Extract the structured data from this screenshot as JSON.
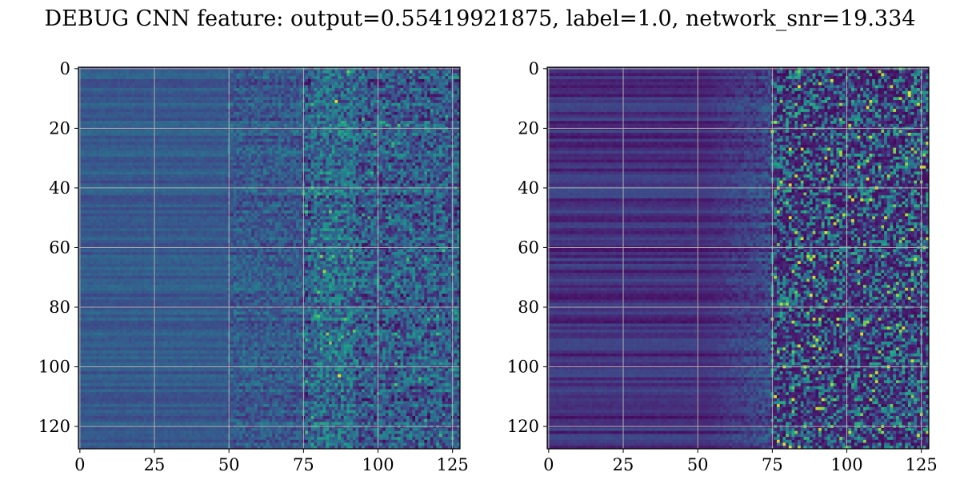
{
  "title": "DEBUG CNN feature: output=0.55419921875, label=1.0, network_snr=19.334",
  "chart_data": [
    {
      "type": "heatmap",
      "name": "left",
      "rows": 128,
      "cols": 128,
      "colormap": "viridis",
      "grid": true,
      "xlim": [
        -0.5,
        127.5
      ],
      "ylim": [
        127.5,
        -0.5
      ],
      "xticks": [
        0,
        25,
        50,
        75,
        100,
        125
      ],
      "yticks": [
        0,
        20,
        40,
        60,
        80,
        100,
        120
      ],
      "xlabel": "",
      "ylabel": "",
      "hotspots": [
        {
          "x": 86,
          "y": 11,
          "level": 0.95
        },
        {
          "x": 87,
          "y": 103,
          "level": 0.97
        },
        {
          "x": 82,
          "y": 68,
          "level": 0.85
        },
        {
          "x": 81,
          "y": 63,
          "level": 0.8
        },
        {
          "x": 84,
          "y": 48,
          "level": 0.75
        },
        {
          "x": 95,
          "y": 17,
          "level": 0.7
        }
      ]
    },
    {
      "type": "heatmap",
      "name": "right",
      "rows": 128,
      "cols": 128,
      "colormap": "viridis",
      "grid": true,
      "xlim": [
        -0.5,
        127.5
      ],
      "ylim": [
        127.5,
        -0.5
      ],
      "xticks": [
        0,
        25,
        50,
        75,
        100,
        125
      ],
      "yticks": [
        0,
        20,
        40,
        60,
        80,
        100,
        120
      ],
      "xlabel": "",
      "ylabel": "",
      "hotspots": [
        {
          "x": 95,
          "y": 4,
          "level": 0.95
        },
        {
          "x": 108,
          "y": 11,
          "level": 0.9
        },
        {
          "x": 115,
          "y": 6,
          "level": 0.9
        },
        {
          "x": 83,
          "y": 36,
          "level": 0.9
        },
        {
          "x": 110,
          "y": 40,
          "level": 0.95
        },
        {
          "x": 88,
          "y": 76,
          "level": 0.95
        },
        {
          "x": 81,
          "y": 127,
          "level": 0.95
        },
        {
          "x": 91,
          "y": 94,
          "level": 0.9
        },
        {
          "x": 108,
          "y": 103,
          "level": 0.9
        },
        {
          "x": 110,
          "y": 105,
          "level": 0.9
        },
        {
          "x": 104,
          "y": 23,
          "level": 0.85
        },
        {
          "x": 126,
          "y": 60,
          "level": 0.85
        }
      ]
    }
  ]
}
